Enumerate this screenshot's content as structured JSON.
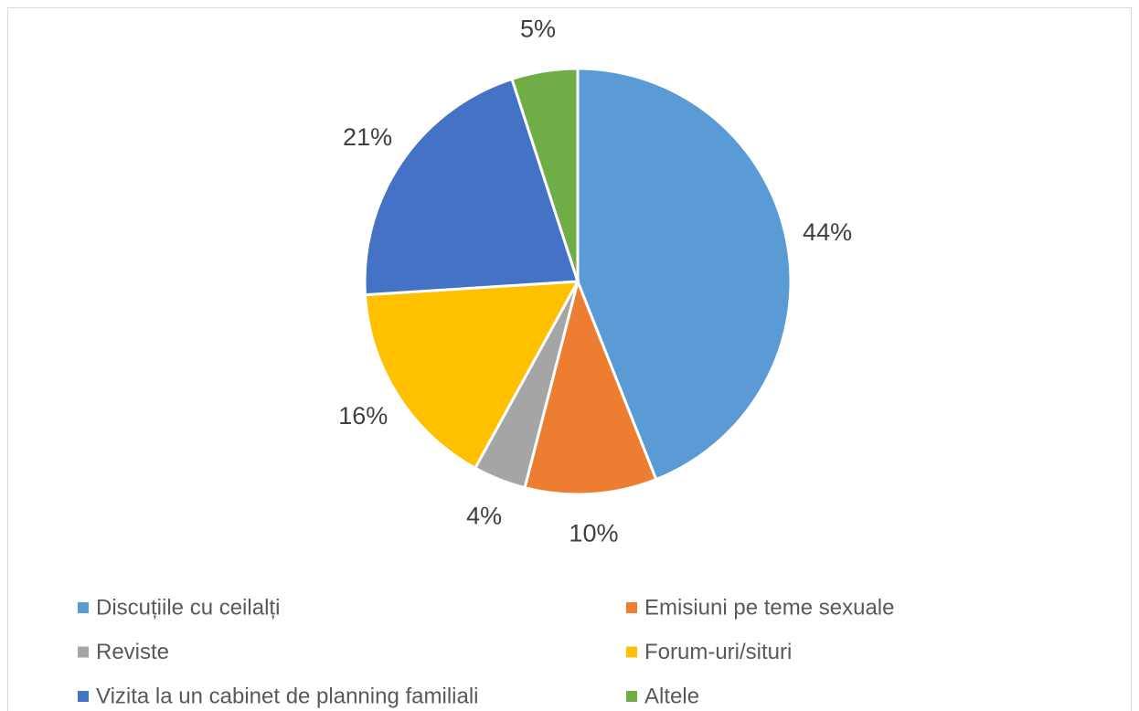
{
  "chart_data": {
    "type": "pie",
    "categories": [
      "Discuțiile cu ceilalți",
      "Emisiuni pe teme sexuale",
      "Reviste",
      "Forum-uri/situri",
      "Vizita la un cabinet de planning familiali",
      "Altele"
    ],
    "values": [
      44,
      10,
      4,
      16,
      21,
      5
    ],
    "value_labels": [
      "44%",
      "10%",
      "4%",
      "16%",
      "21%",
      "5%"
    ],
    "colors": [
      "#5b9bd5",
      "#ed7d31",
      "#a5a5a5",
      "#ffc000",
      "#4472c4",
      "#70ad47"
    ],
    "legend": "bottom"
  }
}
